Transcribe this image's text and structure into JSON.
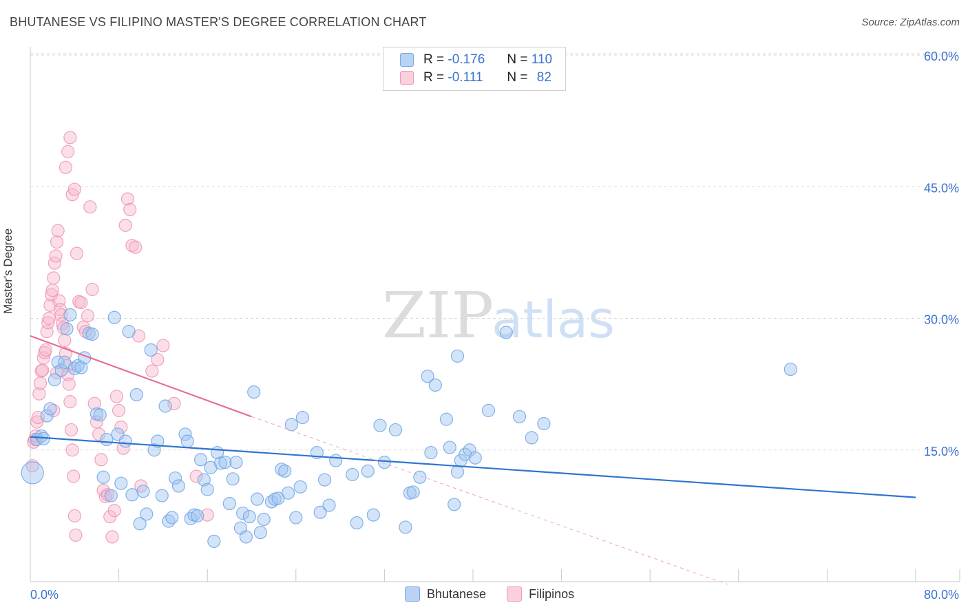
{
  "header": {
    "title": "BHUTANESE VS FILIPINO MASTER'S DEGREE CORRELATION CHART",
    "source": "Source: ZipAtlas.com"
  },
  "watermark": {
    "zip": "ZIP",
    "atlas": "atlas"
  },
  "legend_top": [
    {
      "swatch_color": "#9dc3f0",
      "r_label": "R =",
      "r_value": "-0.176",
      "n_label": "N =",
      "n_value": "110"
    },
    {
      "swatch_color": "#f7b8cd",
      "r_label": "R =",
      "r_value": "-0.111",
      "n_label": "N =",
      "n_value": "82"
    }
  ],
  "legend_bottom": [
    {
      "label": "Bhutanese",
      "color": "#9dc3f0"
    },
    {
      "label": "Filipinos",
      "color": "#f7b8cd"
    }
  ],
  "chart_data": {
    "type": "scatter",
    "xlabel": "",
    "ylabel": "Master's Degree",
    "xlim": [
      0,
      80
    ],
    "ylim": [
      0,
      60
    ],
    "x_tick_labels": [
      "0.0%",
      "80.0%"
    ],
    "y_tick_labels": [
      "15.0%",
      "30.0%",
      "45.0%",
      "60.0%"
    ],
    "y_ticks": [
      15,
      30,
      45,
      60
    ],
    "grid": true,
    "series": [
      {
        "name": "Bhutanese",
        "color": "#6fa4e8",
        "fill": "#9dc3f0",
        "trend": {
          "x": [
            0,
            80
          ],
          "y": [
            16.5,
            9.6
          ],
          "color": "#2f74d0"
        },
        "points": [
          [
            0.2,
            12.4
          ],
          [
            0.6,
            16.2
          ],
          [
            1.0,
            16.6
          ],
          [
            1.2,
            16.3
          ],
          [
            1.5,
            18.9
          ],
          [
            1.8,
            19.7
          ],
          [
            2.2,
            23.0
          ],
          [
            2.5,
            25.0
          ],
          [
            2.8,
            24.1
          ],
          [
            3.1,
            25.0
          ],
          [
            3.3,
            28.8
          ],
          [
            3.6,
            30.4
          ],
          [
            4.0,
            24.3
          ],
          [
            4.3,
            24.6
          ],
          [
            4.6,
            24.4
          ],
          [
            4.9,
            25.5
          ],
          [
            5.3,
            28.3
          ],
          [
            5.6,
            28.2
          ],
          [
            6.0,
            19.1
          ],
          [
            6.3,
            19.0
          ],
          [
            6.6,
            11.9
          ],
          [
            6.9,
            16.2
          ],
          [
            7.3,
            9.8
          ],
          [
            7.6,
            30.1
          ],
          [
            7.9,
            16.8
          ],
          [
            8.2,
            11.2
          ],
          [
            8.6,
            16.0
          ],
          [
            8.9,
            28.5
          ],
          [
            9.2,
            9.9
          ],
          [
            9.6,
            21.3
          ],
          [
            9.9,
            6.6
          ],
          [
            10.2,
            10.3
          ],
          [
            10.5,
            7.7
          ],
          [
            10.9,
            26.4
          ],
          [
            11.2,
            15.0
          ],
          [
            11.5,
            16.0
          ],
          [
            11.9,
            9.8
          ],
          [
            12.2,
            20.0
          ],
          [
            12.5,
            6.9
          ],
          [
            12.8,
            7.3
          ],
          [
            13.1,
            11.8
          ],
          [
            13.4,
            10.9
          ],
          [
            14.0,
            16.8
          ],
          [
            14.2,
            16.0
          ],
          [
            14.5,
            7.2
          ],
          [
            14.8,
            7.6
          ],
          [
            15.1,
            7.5
          ],
          [
            15.4,
            13.9
          ],
          [
            15.7,
            11.6
          ],
          [
            16.0,
            10.5
          ],
          [
            16.3,
            13.0
          ],
          [
            16.6,
            4.6
          ],
          [
            16.9,
            14.7
          ],
          [
            17.2,
            13.5
          ],
          [
            17.6,
            13.6
          ],
          [
            18.0,
            8.9
          ],
          [
            18.3,
            11.7
          ],
          [
            18.6,
            13.6
          ],
          [
            19.0,
            6.1
          ],
          [
            19.2,
            7.8
          ],
          [
            19.5,
            5.1
          ],
          [
            19.8,
            7.4
          ],
          [
            20.2,
            21.6
          ],
          [
            20.5,
            9.4
          ],
          [
            20.8,
            5.6
          ],
          [
            21.1,
            7.1
          ],
          [
            21.8,
            9.1
          ],
          [
            22.1,
            9.4
          ],
          [
            22.4,
            9.5
          ],
          [
            22.7,
            12.8
          ],
          [
            23.0,
            12.6
          ],
          [
            23.3,
            10.1
          ],
          [
            23.6,
            17.9
          ],
          [
            24.0,
            7.3
          ],
          [
            24.4,
            10.8
          ],
          [
            24.6,
            18.7
          ],
          [
            25.9,
            14.7
          ],
          [
            26.2,
            7.9
          ],
          [
            26.6,
            11.6
          ],
          [
            27.0,
            8.7
          ],
          [
            27.6,
            13.8
          ],
          [
            29.1,
            12.2
          ],
          [
            29.5,
            6.7
          ],
          [
            30.5,
            12.6
          ],
          [
            31.0,
            7.6
          ],
          [
            31.6,
            17.8
          ],
          [
            32.0,
            13.6
          ],
          [
            33.0,
            17.3
          ],
          [
            33.9,
            6.2
          ],
          [
            34.3,
            10.1
          ],
          [
            34.6,
            10.2
          ],
          [
            35.2,
            11.9
          ],
          [
            35.9,
            23.4
          ],
          [
            36.2,
            14.7
          ],
          [
            36.6,
            22.4
          ],
          [
            37.6,
            18.5
          ],
          [
            37.9,
            15.3
          ],
          [
            38.3,
            8.8
          ],
          [
            38.6,
            12.5
          ],
          [
            38.9,
            13.8
          ],
          [
            39.3,
            14.5
          ],
          [
            39.7,
            15.0
          ],
          [
            40.2,
            14.1
          ],
          [
            41.4,
            19.5
          ],
          [
            43.0,
            28.4
          ],
          [
            44.2,
            18.8
          ],
          [
            45.3,
            16.4
          ],
          [
            46.4,
            18.0
          ],
          [
            68.7,
            24.2
          ],
          [
            38.6,
            25.7
          ]
        ]
      },
      {
        "name": "Filipinos",
        "color": "#ef93b1",
        "fill": "#f7b8cd",
        "trend": {
          "x": [
            0,
            20
          ],
          "y": [
            28.0,
            18.8
          ],
          "color": "#e36f97"
        },
        "dashed_extension": {
          "x": [
            20,
            63
          ],
          "y": [
            18.8,
            -0.3
          ]
        },
        "points": [
          [
            0.2,
            13.2
          ],
          [
            0.3,
            15.9
          ],
          [
            0.4,
            16.2
          ],
          [
            0.5,
            16.6
          ],
          [
            0.6,
            18.2
          ],
          [
            0.7,
            18.7
          ],
          [
            0.8,
            21.4
          ],
          [
            0.9,
            22.6
          ],
          [
            1.0,
            24.0
          ],
          [
            1.1,
            24.1
          ],
          [
            1.2,
            25.5
          ],
          [
            1.3,
            26.1
          ],
          [
            1.4,
            26.4
          ],
          [
            1.5,
            28.5
          ],
          [
            1.6,
            29.5
          ],
          [
            1.7,
            30.0
          ],
          [
            1.8,
            31.5
          ],
          [
            1.9,
            32.7
          ],
          [
            2.0,
            33.2
          ],
          [
            2.1,
            34.6
          ],
          [
            2.2,
            36.3
          ],
          [
            2.3,
            37.1
          ],
          [
            2.4,
            38.7
          ],
          [
            2.5,
            40.0
          ],
          [
            2.6,
            32.0
          ],
          [
            2.7,
            31.0
          ],
          [
            2.8,
            30.4
          ],
          [
            2.9,
            29.4
          ],
          [
            3.0,
            28.9
          ],
          [
            3.1,
            27.5
          ],
          [
            3.2,
            26.0
          ],
          [
            3.3,
            24.6
          ],
          [
            3.4,
            23.6
          ],
          [
            3.5,
            22.5
          ],
          [
            3.6,
            20.5
          ],
          [
            3.7,
            17.3
          ],
          [
            3.8,
            15.0
          ],
          [
            3.9,
            12.0
          ],
          [
            4.0,
            7.5
          ],
          [
            4.1,
            5.3
          ],
          [
            3.2,
            47.2
          ],
          [
            3.4,
            49.0
          ],
          [
            3.6,
            50.6
          ],
          [
            3.8,
            44.1
          ],
          [
            4.0,
            44.7
          ],
          [
            4.2,
            37.4
          ],
          [
            4.4,
            31.9
          ],
          [
            4.6,
            31.8
          ],
          [
            4.8,
            29.0
          ],
          [
            5.0,
            28.5
          ],
          [
            5.2,
            30.3
          ],
          [
            5.4,
            42.7
          ],
          [
            5.6,
            33.3
          ],
          [
            5.8,
            20.3
          ],
          [
            6.0,
            18.2
          ],
          [
            6.2,
            16.8
          ],
          [
            6.4,
            13.9
          ],
          [
            6.6,
            10.4
          ],
          [
            6.8,
            9.7
          ],
          [
            7.0,
            9.9
          ],
          [
            7.2,
            7.4
          ],
          [
            7.4,
            5.1
          ],
          [
            7.6,
            8.1
          ],
          [
            7.8,
            21.1
          ],
          [
            8.0,
            19.5
          ],
          [
            8.2,
            17.6
          ],
          [
            8.4,
            15.2
          ],
          [
            8.6,
            40.6
          ],
          [
            8.8,
            43.6
          ],
          [
            9.0,
            42.4
          ],
          [
            9.2,
            38.3
          ],
          [
            9.5,
            38.1
          ],
          [
            9.8,
            28.0
          ],
          [
            10.0,
            10.9
          ],
          [
            11.0,
            24.0
          ],
          [
            11.5,
            25.3
          ],
          [
            12.0,
            26.9
          ],
          [
            13.0,
            20.3
          ],
          [
            15.0,
            12.0
          ],
          [
            16.0,
            7.6
          ],
          [
            2.1,
            19.5
          ],
          [
            2.4,
            23.8
          ]
        ]
      }
    ]
  }
}
